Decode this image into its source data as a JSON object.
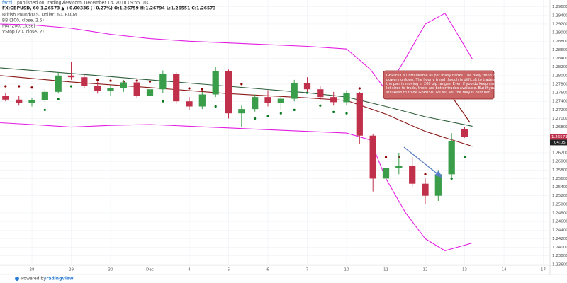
{
  "header": {
    "publisher": "facnl",
    "published": "published on TradingView.com, December 13, 2018 09:55 UTC",
    "symbol_line": "FX:GBPUSD, 60  1.26573 ▲ +0.00336 (+0.27%) O:1.26759 H:1.26794 L:1.26551 C:1.26573"
  },
  "chart_data": {
    "type": "candlestick",
    "title": "British Pound/U.S. Dollar, 60, FXCM",
    "x": [
      -0.67,
      -0.33,
      0,
      0.33,
      0.67,
      1,
      1.33,
      1.67,
      2,
      2.33,
      2.67,
      3,
      3.33,
      3.67,
      4,
      4.33,
      4.67,
      5,
      5.33,
      5.67,
      6,
      6.33,
      6.67,
      7,
      7.33,
      7.67,
      8,
      8.33,
      8.67,
      9,
      9.33,
      9.67,
      10,
      10.33,
      10.67,
      11
    ],
    "open": [
      1.2752,
      1.2744,
      1.2736,
      1.2742,
      1.2762,
      1.28,
      1.2796,
      1.2776,
      1.2764,
      1.277,
      1.2784,
      1.2752,
      1.2768,
      1.2804,
      1.274,
      1.2728,
      1.2756,
      1.281,
      1.2712,
      1.2722,
      1.275,
      1.2736,
      1.2746,
      1.2782,
      1.2768,
      1.275,
      1.2738,
      1.276,
      1.266,
      1.256,
      1.2584,
      1.259,
      1.2548,
      1.252,
      1.257,
      1.26759
    ],
    "high": [
      1.276,
      1.2752,
      1.2748,
      1.2768,
      1.2808,
      1.2832,
      1.2804,
      1.2786,
      1.2778,
      1.279,
      1.2792,
      1.2774,
      1.2812,
      1.2808,
      1.275,
      1.2762,
      1.282,
      1.2814,
      1.273,
      1.2756,
      1.2766,
      1.2752,
      1.279,
      1.2796,
      1.2776,
      1.2762,
      1.2766,
      1.2762,
      1.2664,
      1.259,
      1.262,
      1.261,
      1.256,
      1.258,
      1.2666,
      1.26794
    ],
    "low": [
      1.274,
      1.273,
      1.2728,
      1.2738,
      1.2758,
      1.279,
      1.277,
      1.2758,
      1.2752,
      1.2762,
      1.2748,
      1.274,
      1.276,
      1.2734,
      1.272,
      1.2722,
      1.275,
      1.27,
      1.268,
      1.2716,
      1.2728,
      1.272,
      1.274,
      1.2762,
      1.2744,
      1.273,
      1.2732,
      1.264,
      1.253,
      1.2545,
      1.257,
      1.254,
      1.25,
      1.2508,
      1.2562,
      1.26551
    ],
    "close": [
      1.2744,
      1.2736,
      1.2742,
      1.2762,
      1.28,
      1.2796,
      1.2776,
      1.2764,
      1.277,
      1.2784,
      1.2752,
      1.2768,
      1.2804,
      1.274,
      1.2728,
      1.2756,
      1.281,
      1.2712,
      1.2722,
      1.275,
      1.2736,
      1.2746,
      1.2782,
      1.2768,
      1.275,
      1.2738,
      1.276,
      1.266,
      1.256,
      1.2584,
      1.259,
      1.2548,
      1.252,
      1.257,
      1.2648,
      1.26573
    ],
    "up_color": "#3a9d4a",
    "down_color": "#c0304a",
    "series": [
      {
        "name": "BB (100, close, 2.5)",
        "color": "#e31ee3",
        "x": [
          -0.81,
          0,
          1,
          2,
          3,
          4,
          5,
          6,
          7,
          8,
          8.6,
          9,
          9.5,
          10,
          10.5,
          11.2
        ],
        "values": [
          1.292,
          1.2918,
          1.291,
          1.2896,
          1.2886,
          1.288,
          1.2876,
          1.2872,
          1.2868,
          1.2862,
          1.2815,
          1.2765,
          1.284,
          1.292,
          1.2945,
          1.2838
        ]
      },
      {
        "name": "BB (100, close, 2.5)",
        "color": "#e31ee3",
        "x": [
          -0.81,
          0,
          1,
          2,
          3,
          4,
          5,
          6,
          7,
          8,
          8.6,
          9,
          9.5,
          10,
          10.5,
          11.2
        ],
        "values": [
          1.269,
          1.2686,
          1.268,
          1.2684,
          1.2686,
          1.2682,
          1.2678,
          1.2674,
          1.267,
          1.2666,
          1.265,
          1.256,
          1.248,
          1.242,
          1.2392,
          1.241
        ]
      },
      {
        "name": "BB (100, close, 2.5)",
        "color": "#8b1a1a",
        "x": [
          -0.81,
          1,
          3,
          5,
          7,
          8,
          9,
          10,
          11.2
        ],
        "values": [
          1.28,
          1.2785,
          1.2772,
          1.2758,
          1.2748,
          1.2742,
          1.271,
          1.267,
          1.2635
        ]
      },
      {
        "name": "MA (200, close)",
        "color": "#2e5e3a",
        "x": [
          -0.81,
          1,
          3,
          5,
          7,
          8,
          9,
          10,
          11.2
        ],
        "values": [
          1.2818,
          1.2805,
          1.279,
          1.2775,
          1.276,
          1.275,
          1.2728,
          1.2704,
          1.2682
        ]
      },
      {
        "name": "VStop (20, close, 2)",
        "color": "#0b7a1f",
        "down_color": "#8b0000",
        "dots": true,
        "x": [
          -0.67,
          -0.33,
          0,
          0.33,
          0.67,
          1,
          1.33,
          1.67,
          2,
          2.33,
          2.67,
          3,
          3.33,
          3.67,
          4,
          4.33,
          4.67,
          5,
          5.33,
          5.67,
          6,
          6.33,
          6.67,
          7,
          7.33,
          7.67,
          8,
          8.33,
          8.67,
          9,
          9.33,
          9.67,
          10,
          10.33,
          10.67,
          11
        ],
        "values": [
          1.2775,
          1.2775,
          1.2772,
          1.272,
          1.2745,
          1.2775,
          1.279,
          1.279,
          1.2788,
          1.2786,
          1.2788,
          1.2786,
          1.274,
          1.2775,
          1.277,
          1.2768,
          1.2728,
          1.279,
          1.278,
          1.27,
          1.2705,
          1.2712,
          1.272,
          1.276,
          1.273,
          1.2715,
          1.2712,
          1.277,
          1.264,
          1.261,
          1.261,
          1.258,
          1.257,
          1.2525,
          1.256,
          1.261
        ]
      }
    ],
    "xlim": [
      -0.811,
      13.153
    ],
    "ylim": [
      1.2358,
      1.2976
    ],
    "grid": true,
    "xticks": [
      {
        "value": 0,
        "label": "28"
      },
      {
        "value": 1,
        "label": "29"
      },
      {
        "value": 2,
        "label": "30"
      },
      {
        "value": 3,
        "label": "Dec"
      },
      {
        "value": 4,
        "label": "4"
      },
      {
        "value": 5,
        "label": "5"
      },
      {
        "value": 6,
        "label": "6"
      },
      {
        "value": 7,
        "label": "7"
      },
      {
        "value": 8,
        "label": "10"
      },
      {
        "value": 9,
        "label": "11"
      },
      {
        "value": 10,
        "label": "12"
      },
      {
        "value": 11,
        "label": "13"
      },
      {
        "value": 12,
        "label": "14"
      },
      {
        "value": 13,
        "label": "17"
      }
    ],
    "yticks": [
      {
        "value": 1.236,
        "label": "1.23600"
      },
      {
        "value": 1.238,
        "label": "1.23800"
      },
      {
        "value": 1.24,
        "label": "1.24000"
      },
      {
        "value": 1.242,
        "label": "1.24200"
      },
      {
        "value": 1.244,
        "label": "1.24400"
      },
      {
        "value": 1.246,
        "label": "1.24600"
      },
      {
        "value": 1.248,
        "label": "1.24800"
      },
      {
        "value": 1.25,
        "label": "1.25000"
      },
      {
        "value": 1.252,
        "label": "1.25200"
      },
      {
        "value": 1.254,
        "label": "1.25400"
      },
      {
        "value": 1.256,
        "label": "1.25600"
      },
      {
        "value": 1.258,
        "label": "1.25800"
      },
      {
        "value": 1.26,
        "label": "1.26000"
      },
      {
        "value": 1.262,
        "label": "1.26200"
      },
      {
        "value": 1.264,
        "label": "1.26400"
      },
      {
        "value": 1.266,
        "label": "1.26600"
      },
      {
        "value": 1.268,
        "label": "1.26800"
      },
      {
        "value": 1.27,
        "label": "1.27000"
      },
      {
        "value": 1.272,
        "label": "1.27200"
      },
      {
        "value": 1.274,
        "label": "1.27400"
      },
      {
        "value": 1.276,
        "label": "1.27600"
      },
      {
        "value": 1.278,
        "label": "1.27800"
      },
      {
        "value": 1.28,
        "label": "1.28000"
      },
      {
        "value": 1.282,
        "label": "1.28200"
      },
      {
        "value": 1.284,
        "label": "1.28400"
      },
      {
        "value": 1.286,
        "label": "1.28600"
      },
      {
        "value": 1.288,
        "label": "1.28800"
      },
      {
        "value": 1.29,
        "label": "1.29000"
      },
      {
        "value": 1.292,
        "label": "1.29200"
      },
      {
        "value": 1.294,
        "label": "1.29400"
      },
      {
        "value": 1.296,
        "label": "1.29600"
      }
    ],
    "price_marker": {
      "value": 1.26573,
      "label": "1.26573"
    },
    "time_marker": "04:05",
    "annotation": "GBPUSD is untradeable as per many banks. The daily trend is powering down. The hourly trend though is difficult to trade as the pair is moving in 200 pip ranges. Even if you do keep small lot sizes to trade, there are better trades available. But if you still keen to trade GBPUSD, we fell sell the rally is best bet"
  },
  "footer": {
    "prefix": "Powered by",
    "brand": "TradingView"
  }
}
